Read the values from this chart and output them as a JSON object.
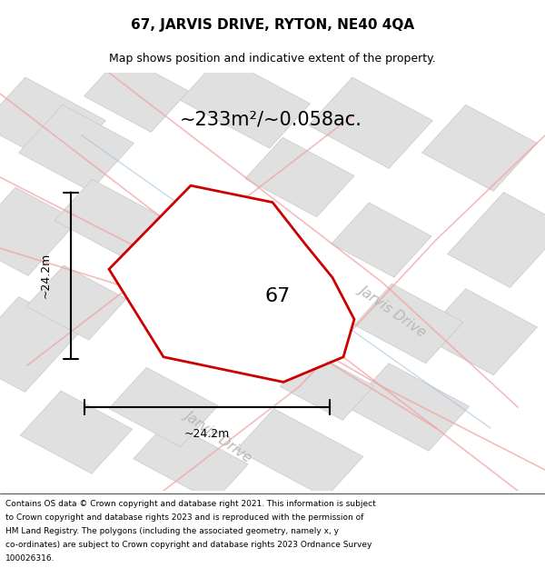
{
  "title": "67, JARVIS DRIVE, RYTON, NE40 4QA",
  "subtitle": "Map shows position and indicative extent of the property.",
  "area_text": "~233m²/~0.058ac.",
  "plot_number": "67",
  "dim_width": "~24.2m",
  "dim_height": "~24.2m",
  "road_label_1": "Jarvis Drive",
  "road_label_2": "Jarvis Drive",
  "footer_lines": [
    "Contains OS data © Crown copyright and database right 2021. This information is subject",
    "to Crown copyright and database rights 2023 and is reproduced with the permission of",
    "HM Land Registry. The polygons (including the associated geometry, namely x, y",
    "co-ordinates) are subject to Crown copyright and database rights 2023 Ordnance Survey",
    "100026316."
  ],
  "bg_color": "#f5f5f5",
  "plot_color": "#cc0000",
  "pink_road_color": "#f0a0a0",
  "blue_road_color": "#a0c0e0",
  "block_color": "#e0e0e0",
  "block_edge_color": "#c8c8c8"
}
